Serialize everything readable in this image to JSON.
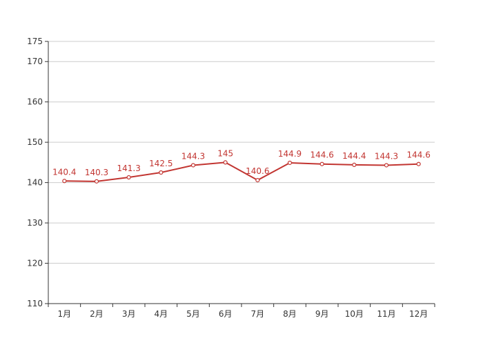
{
  "colors": {
    "series": "#c23531",
    "grid": "#cccccc",
    "axis": "#333333",
    "text": "#333333",
    "point_fill": "#ffffff"
  },
  "chart_data": {
    "type": "line",
    "title": "",
    "xlabel": "",
    "ylabel": "",
    "categories": [
      "1月",
      "2月",
      "3月",
      "4月",
      "5月",
      "6月",
      "7月",
      "8月",
      "9月",
      "10月",
      "11月",
      "12月"
    ],
    "series": [
      {
        "values": [
          140.4,
          140.3,
          141.3,
          142.5,
          144.3,
          145,
          140.6,
          144.9,
          144.6,
          144.4,
          144.3,
          144.6
        ],
        "data_labels": [
          "140.4",
          "140.3",
          "141.3",
          "142.5",
          "144.3",
          "145",
          "140.6",
          "144.9",
          "144.6",
          "144.4",
          "144.3",
          "144.6"
        ]
      }
    ],
    "ylim": [
      110,
      175
    ],
    "yticks": [
      110,
      120,
      130,
      140,
      150,
      160,
      170,
      175
    ],
    "ytick_labels": [
      "110",
      "120",
      "130",
      "140",
      "150",
      "160",
      "170",
      "175"
    ],
    "grid": true,
    "legend": "none"
  }
}
